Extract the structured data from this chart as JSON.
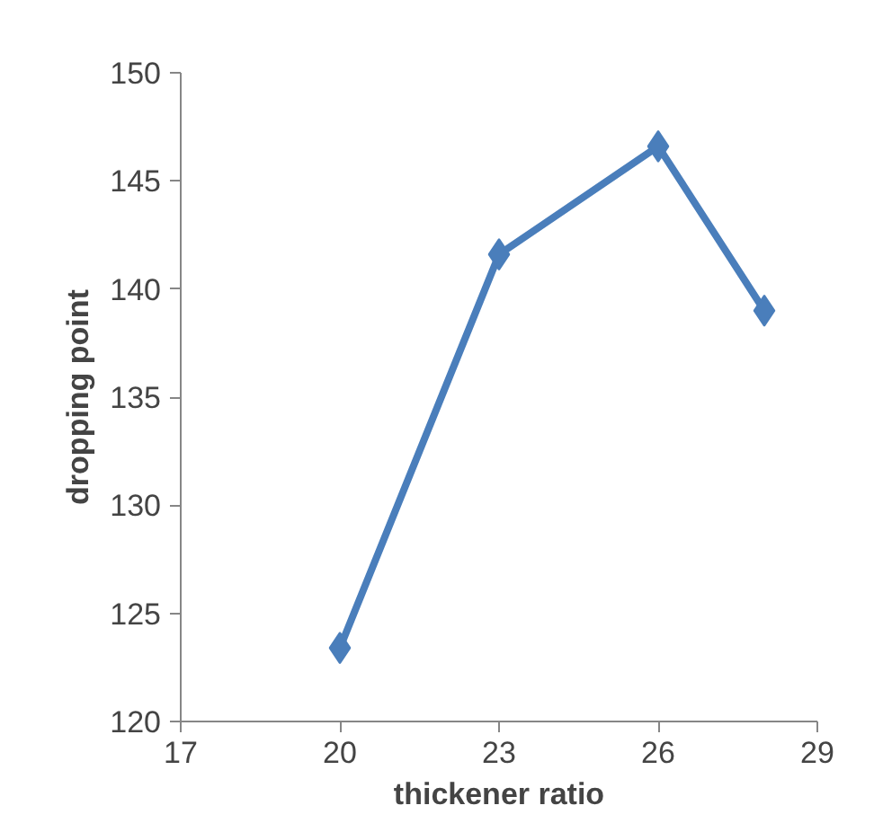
{
  "chart_data": {
    "type": "line",
    "xlabel": "thickener ratio",
    "ylabel": "dropping point",
    "x": [
      20,
      23,
      26,
      28
    ],
    "series": [
      {
        "color": "#4a7ebb",
        "values": [
          123.4,
          141.6,
          146.6,
          139.0
        ]
      }
    ],
    "xlim": [
      17,
      29
    ],
    "xticks": [
      17,
      20,
      23,
      26,
      29
    ],
    "ylim": [
      120,
      150
    ],
    "yticks": [
      120,
      125,
      130,
      135,
      140,
      145,
      150
    ],
    "grid": false,
    "marker": "diamond",
    "line_style": "solid"
  }
}
